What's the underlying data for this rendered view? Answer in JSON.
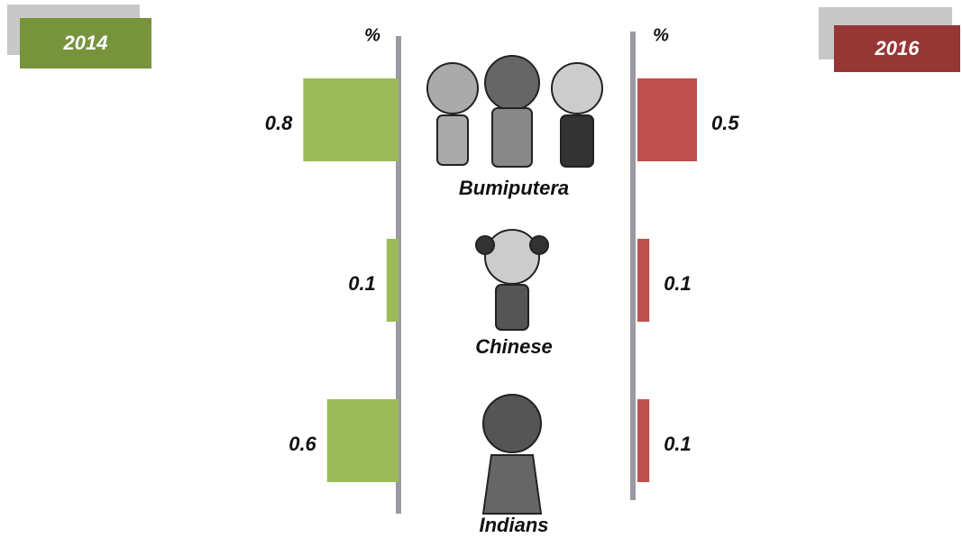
{
  "chart_data": {
    "type": "bar",
    "categories": [
      "Bumiputera",
      "Chinese",
      "Indians"
    ],
    "axis_labels": [
      "%",
      "%"
    ],
    "series": [
      {
        "name": "2014",
        "color": "#9bbb59",
        "tag_color": "#77933c",
        "values": [
          0.8,
          0.1,
          0.6
        ]
      },
      {
        "name": "2016",
        "color": "#c0504d",
        "tag_color": "#953735",
        "values": [
          0.5,
          0.1,
          0.1
        ]
      }
    ]
  }
}
